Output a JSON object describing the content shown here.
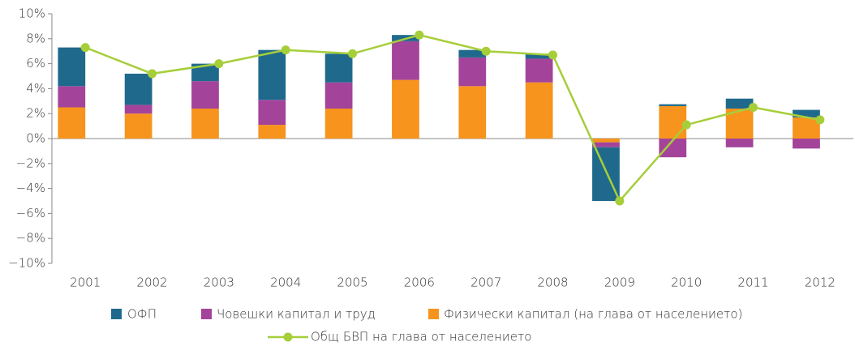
{
  "chart_data": {
    "type": "bar",
    "stacked": true,
    "categories": [
      "2001",
      "2002",
      "2003",
      "2004",
      "2005",
      "2006",
      "2007",
      "2008",
      "2009",
      "2010",
      "2011",
      "2012"
    ],
    "series": [
      {
        "name": "ОФП",
        "color": "#1f6a8c",
        "values": [
          3.1,
          2.5,
          1.4,
          4.0,
          2.3,
          0.5,
          0.6,
          0.4,
          -4.3,
          0.15,
          0.8,
          0.6
        ]
      },
      {
        "name": "Човешки капитал и труд",
        "color": "#a3449a",
        "values": [
          1.7,
          0.7,
          2.2,
          2.0,
          2.1,
          3.1,
          2.3,
          1.9,
          -0.4,
          -1.5,
          -0.7,
          -0.8
        ]
      },
      {
        "name": "Физически капитал (на глава от населението)",
        "color": "#f7941d",
        "values": [
          2.5,
          2.0,
          2.4,
          1.1,
          2.4,
          4.7,
          4.2,
          4.5,
          -0.3,
          2.6,
          2.4,
          1.7
        ]
      },
      {
        "name": "Общ БВП на глава от населението",
        "color": "#a6ce39",
        "type": "line",
        "values": [
          7.3,
          5.2,
          6.0,
          7.1,
          6.8,
          8.3,
          7.0,
          6.7,
          -5.0,
          1.1,
          2.5,
          1.5
        ]
      }
    ],
    "ylim": [
      -10,
      10
    ],
    "yticks": [
      {
        "value": -10,
        "label": "−10%"
      },
      {
        "value": -8,
        "label": "−8%"
      },
      {
        "value": -6,
        "label": "−6%"
      },
      {
        "value": -4,
        "label": "−4%"
      },
      {
        "value": -2,
        "label": "−2%"
      },
      {
        "value": 0,
        "label": "0%"
      },
      {
        "value": 2,
        "label": "2%"
      },
      {
        "value": 4,
        "label": "4%"
      },
      {
        "value": 6,
        "label": "6%"
      },
      {
        "value": 8,
        "label": "8%"
      },
      {
        "value": 10,
        "label": "10%"
      }
    ],
    "grid": false,
    "legend": "bottom"
  }
}
